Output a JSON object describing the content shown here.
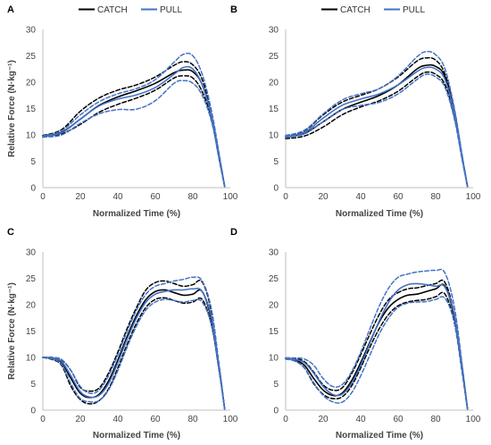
{
  "colors": {
    "catch": "#000000",
    "pull": "#4472c4",
    "axis": "#bfbfbf"
  },
  "chart_data": [
    {
      "panel": "A",
      "type": "line",
      "xlabel": "Normalized Time (%)",
      "ylabel": "Relative Force (N·kg⁻¹)",
      "xlim": [
        0,
        100
      ],
      "ylim": [
        0,
        30
      ],
      "xticks": [
        0,
        20,
        40,
        60,
        80,
        100
      ],
      "yticks": [
        0,
        5,
        10,
        15,
        20,
        25,
        30
      ],
      "legend": [
        "CATCH",
        "PULL"
      ],
      "series": [
        {
          "name": "CATCH",
          "style": "solid",
          "x": [
            0,
            10,
            20,
            30,
            40,
            50,
            60,
            70,
            75,
            80,
            85,
            90,
            94,
            97
          ],
          "y": [
            9.8,
            10.5,
            13.0,
            15.6,
            17.2,
            18.4,
            19.8,
            21.8,
            22.3,
            22.0,
            19.5,
            13.5,
            6.0,
            0.2
          ]
        },
        {
          "name": "CATCH",
          "style": "dashed",
          "x": [
            0,
            10,
            20,
            30,
            40,
            50,
            60,
            70,
            75,
            80,
            85,
            90,
            94,
            97
          ],
          "y": [
            9.9,
            11.0,
            14.5,
            17.0,
            18.5,
            19.5,
            21.0,
            23.2,
            23.9,
            23.3,
            20.5,
            14.0,
            6.0,
            0.2
          ]
        },
        {
          "name": "CATCH",
          "style": "dashed",
          "x": [
            0,
            10,
            20,
            30,
            40,
            50,
            60,
            70,
            75,
            80,
            85,
            90,
            94,
            97
          ],
          "y": [
            9.6,
            10.2,
            12.0,
            14.3,
            15.8,
            17.0,
            18.5,
            20.8,
            21.2,
            20.8,
            18.2,
            13.0,
            5.5,
            0.2
          ]
        },
        {
          "name": "PULL",
          "style": "solid",
          "x": [
            0,
            10,
            20,
            30,
            40,
            50,
            60,
            70,
            75,
            80,
            85,
            90,
            94,
            97
          ],
          "y": [
            9.7,
            10.4,
            13.0,
            15.5,
            16.8,
            17.6,
            19.0,
            21.5,
            22.8,
            22.5,
            19.5,
            13.5,
            6.0,
            0.2
          ]
        },
        {
          "name": "PULL",
          "style": "dashed",
          "x": [
            0,
            10,
            20,
            30,
            40,
            50,
            60,
            70,
            75,
            80,
            85,
            90,
            94,
            97
          ],
          "y": [
            9.8,
            10.8,
            13.8,
            16.3,
            17.8,
            18.8,
            20.5,
            23.8,
            25.3,
            25.0,
            21.5,
            14.5,
            6.5,
            0.2
          ]
        },
        {
          "name": "PULL",
          "style": "dashed",
          "x": [
            0,
            10,
            20,
            30,
            40,
            50,
            60,
            70,
            75,
            80,
            85,
            90,
            94,
            97
          ],
          "y": [
            9.6,
            10.0,
            12.2,
            14.0,
            14.8,
            14.9,
            16.5,
            19.8,
            20.3,
            19.8,
            17.5,
            12.5,
            5.5,
            0.2
          ]
        }
      ]
    },
    {
      "panel": "B",
      "type": "line",
      "xlabel": "Normalized Time (%)",
      "ylabel": "",
      "xlim": [
        0,
        100
      ],
      "ylim": [
        0,
        30
      ],
      "xticks": [
        0,
        20,
        40,
        60,
        80,
        100
      ],
      "yticks": [
        0,
        5,
        10,
        15,
        20,
        25,
        30
      ],
      "legend": [
        "CATCH",
        "PULL"
      ],
      "series": [
        {
          "name": "CATCH",
          "style": "solid",
          "x": [
            0,
            10,
            20,
            30,
            40,
            50,
            60,
            70,
            75,
            80,
            85,
            90,
            94,
            97
          ],
          "y": [
            9.6,
            10.3,
            12.5,
            14.8,
            16.2,
            17.5,
            19.5,
            22.5,
            23.2,
            23.0,
            21.0,
            14.0,
            6.0,
            0.2
          ]
        },
        {
          "name": "CATCH",
          "style": "dashed",
          "x": [
            0,
            10,
            20,
            30,
            40,
            50,
            60,
            70,
            75,
            80,
            85,
            90,
            94,
            97
          ],
          "y": [
            9.8,
            10.8,
            13.8,
            16.2,
            17.5,
            18.8,
            21.0,
            24.0,
            24.6,
            24.2,
            21.5,
            14.5,
            6.0,
            0.2
          ]
        },
        {
          "name": "CATCH",
          "style": "dashed",
          "x": [
            0,
            10,
            20,
            30,
            40,
            50,
            60,
            70,
            75,
            80,
            85,
            90,
            94,
            97
          ],
          "y": [
            9.3,
            9.8,
            11.5,
            13.8,
            15.3,
            16.5,
            18.3,
            21.0,
            21.9,
            21.5,
            19.5,
            13.5,
            6.0,
            0.2
          ]
        },
        {
          "name": "PULL",
          "style": "solid",
          "x": [
            0,
            10,
            20,
            30,
            40,
            50,
            60,
            70,
            75,
            80,
            85,
            90,
            94,
            97
          ],
          "y": [
            9.7,
            10.5,
            13.2,
            15.6,
            16.8,
            17.8,
            19.5,
            22.0,
            22.8,
            22.5,
            20.5,
            14.0,
            6.0,
            0.2
          ]
        },
        {
          "name": "PULL",
          "style": "dashed",
          "x": [
            0,
            10,
            20,
            30,
            40,
            50,
            60,
            70,
            75,
            80,
            85,
            90,
            94,
            97
          ],
          "y": [
            9.9,
            10.9,
            14.0,
            16.6,
            17.8,
            18.8,
            21.2,
            24.8,
            25.8,
            25.2,
            22.5,
            15.0,
            6.5,
            0.2
          ]
        },
        {
          "name": "PULL",
          "style": "dashed",
          "x": [
            0,
            10,
            20,
            30,
            40,
            50,
            60,
            70,
            75,
            80,
            85,
            90,
            94,
            97
          ],
          "y": [
            9.6,
            10.2,
            12.5,
            14.8,
            15.6,
            16.2,
            17.8,
            20.5,
            21.5,
            21.0,
            19.0,
            13.0,
            5.5,
            0.2
          ]
        }
      ]
    },
    {
      "panel": "C",
      "type": "line",
      "xlabel": "Normalized Time (%)",
      "ylabel": "Relative Force (N·kg⁻¹)",
      "xlim": [
        0,
        100
      ],
      "ylim": [
        0,
        30
      ],
      "xticks": [
        0,
        20,
        40,
        60,
        80,
        100
      ],
      "yticks": [
        0,
        5,
        10,
        15,
        20,
        25,
        30
      ],
      "legend": [],
      "series": [
        {
          "name": "CATCH",
          "style": "solid",
          "x": [
            0,
            5,
            10,
            15,
            20,
            25,
            30,
            35,
            40,
            45,
            50,
            55,
            60,
            65,
            70,
            75,
            80,
            85,
            90,
            94,
            97
          ],
          "y": [
            10.0,
            9.8,
            9.0,
            6.0,
            3.2,
            2.4,
            3.0,
            5.5,
            9.5,
            14.0,
            18.0,
            21.0,
            22.5,
            22.8,
            22.3,
            21.8,
            22.0,
            22.5,
            17.0,
            8.0,
            0.2
          ]
        },
        {
          "name": "CATCH",
          "style": "dashed",
          "x": [
            0,
            5,
            10,
            15,
            20,
            25,
            30,
            35,
            40,
            45,
            50,
            55,
            60,
            65,
            70,
            75,
            80,
            85,
            90,
            94,
            97
          ],
          "y": [
            10.0,
            10.0,
            9.5,
            7.5,
            4.3,
            3.6,
            4.2,
            7.0,
            11.0,
            15.5,
            19.5,
            22.8,
            24.2,
            24.5,
            24.0,
            23.5,
            23.8,
            24.3,
            18.5,
            8.5,
            0.2
          ]
        },
        {
          "name": "CATCH",
          "style": "dashed",
          "x": [
            0,
            5,
            10,
            15,
            20,
            25,
            30,
            35,
            40,
            45,
            50,
            55,
            60,
            65,
            70,
            75,
            80,
            85,
            90,
            94,
            97
          ],
          "y": [
            10.0,
            9.6,
            8.5,
            4.5,
            2.0,
            1.2,
            1.8,
            4.0,
            8.0,
            12.5,
            16.5,
            19.5,
            21.0,
            21.3,
            20.8,
            20.3,
            20.5,
            21.0,
            16.0,
            7.5,
            0.2
          ]
        },
        {
          "name": "PULL",
          "style": "solid",
          "x": [
            0,
            5,
            10,
            15,
            20,
            25,
            30,
            35,
            40,
            45,
            50,
            55,
            60,
            65,
            70,
            75,
            80,
            85,
            90,
            94,
            97
          ],
          "y": [
            10.0,
            9.9,
            9.2,
            6.5,
            3.5,
            2.5,
            2.8,
            5.0,
            9.0,
            13.5,
            17.5,
            20.5,
            22.0,
            22.5,
            22.8,
            22.8,
            23.0,
            22.5,
            17.5,
            8.0,
            0.2
          ]
        },
        {
          "name": "PULL",
          "style": "dashed",
          "x": [
            0,
            5,
            10,
            15,
            20,
            25,
            30,
            35,
            40,
            45,
            50,
            55,
            60,
            65,
            70,
            75,
            80,
            85,
            90,
            94,
            97
          ],
          "y": [
            10.0,
            10.0,
            9.6,
            7.5,
            4.5,
            3.2,
            3.8,
            6.5,
            10.5,
            15.0,
            19.0,
            22.0,
            23.5,
            24.0,
            24.5,
            24.8,
            25.2,
            24.5,
            19.0,
            8.5,
            0.2
          ]
        },
        {
          "name": "PULL",
          "style": "dashed",
          "x": [
            0,
            5,
            10,
            15,
            20,
            25,
            30,
            35,
            40,
            45,
            50,
            55,
            60,
            65,
            70,
            75,
            80,
            85,
            90,
            94,
            97
          ],
          "y": [
            10.0,
            9.7,
            8.7,
            5.0,
            2.2,
            1.6,
            1.8,
            3.8,
            7.5,
            12.0,
            16.0,
            19.0,
            20.5,
            21.0,
            20.8,
            20.5,
            20.8,
            20.5,
            16.0,
            7.5,
            0.2
          ]
        }
      ]
    },
    {
      "panel": "D",
      "type": "line",
      "xlabel": "Normalized Time (%)",
      "ylabel": "",
      "xlim": [
        0,
        100
      ],
      "ylim": [
        0,
        30
      ],
      "xticks": [
        0,
        20,
        40,
        60,
        80,
        100
      ],
      "yticks": [
        0,
        5,
        10,
        15,
        20,
        25,
        30
      ],
      "legend": [],
      "series": [
        {
          "name": "CATCH",
          "style": "solid",
          "x": [
            0,
            5,
            10,
            15,
            20,
            25,
            30,
            35,
            40,
            45,
            50,
            55,
            60,
            65,
            70,
            75,
            80,
            85,
            90,
            94,
            97
          ],
          "y": [
            9.8,
            9.5,
            8.5,
            6.0,
            3.8,
            2.8,
            3.2,
            5.5,
            9.0,
            13.0,
            16.8,
            19.5,
            21.0,
            21.8,
            22.0,
            22.5,
            23.0,
            23.5,
            17.5,
            8.0,
            0.2
          ]
        },
        {
          "name": "CATCH",
          "style": "dashed",
          "x": [
            0,
            5,
            10,
            15,
            20,
            25,
            30,
            35,
            40,
            45,
            50,
            55,
            60,
            65,
            70,
            75,
            80,
            85,
            90,
            94,
            97
          ],
          "y": [
            9.9,
            9.8,
            9.2,
            7.2,
            4.8,
            3.8,
            4.2,
            6.8,
            10.5,
            14.5,
            18.2,
            21.0,
            22.3,
            23.0,
            23.2,
            23.6,
            24.0,
            24.2,
            18.0,
            8.5,
            0.2
          ]
        },
        {
          "name": "CATCH",
          "style": "dashed",
          "x": [
            0,
            5,
            10,
            15,
            20,
            25,
            30,
            35,
            40,
            45,
            50,
            55,
            60,
            65,
            70,
            75,
            80,
            85,
            90,
            94,
            97
          ],
          "y": [
            9.7,
            9.3,
            8.0,
            5.0,
            3.0,
            2.2,
            2.5,
            4.5,
            8.0,
            12.0,
            15.5,
            18.2,
            19.8,
            20.5,
            20.8,
            21.0,
            21.5,
            22.0,
            16.5,
            7.5,
            0.2
          ]
        },
        {
          "name": "PULL",
          "style": "solid",
          "x": [
            0,
            5,
            10,
            15,
            20,
            25,
            30,
            35,
            40,
            45,
            50,
            55,
            60,
            65,
            70,
            75,
            80,
            85,
            90,
            94,
            97
          ],
          "y": [
            9.8,
            9.6,
            9.0,
            7.0,
            4.5,
            3.0,
            3.0,
            5.0,
            8.5,
            12.8,
            17.0,
            20.5,
            22.8,
            23.8,
            24.0,
            23.8,
            23.5,
            23.3,
            18.0,
            8.0,
            0.2
          ]
        },
        {
          "name": "PULL",
          "style": "dashed",
          "x": [
            0,
            5,
            10,
            15,
            20,
            25,
            30,
            35,
            40,
            45,
            50,
            55,
            60,
            65,
            70,
            75,
            80,
            85,
            90,
            94,
            97
          ],
          "y": [
            9.9,
            9.9,
            9.7,
            8.5,
            6.0,
            4.5,
            4.8,
            7.2,
            11.0,
            15.5,
            19.8,
            23.2,
            25.2,
            25.8,
            26.2,
            26.4,
            26.5,
            26.0,
            19.5,
            9.0,
            0.2
          ]
        },
        {
          "name": "PULL",
          "style": "dashed",
          "x": [
            0,
            5,
            10,
            15,
            20,
            25,
            30,
            35,
            40,
            45,
            50,
            55,
            60,
            65,
            70,
            75,
            80,
            85,
            90,
            94,
            97
          ],
          "y": [
            9.7,
            9.3,
            8.0,
            5.2,
            2.8,
            1.6,
            1.5,
            3.2,
            6.5,
            10.5,
            14.5,
            17.5,
            19.5,
            20.3,
            20.5,
            20.6,
            21.0,
            21.2,
            16.5,
            7.5,
            0.2
          ]
        }
      ]
    }
  ]
}
